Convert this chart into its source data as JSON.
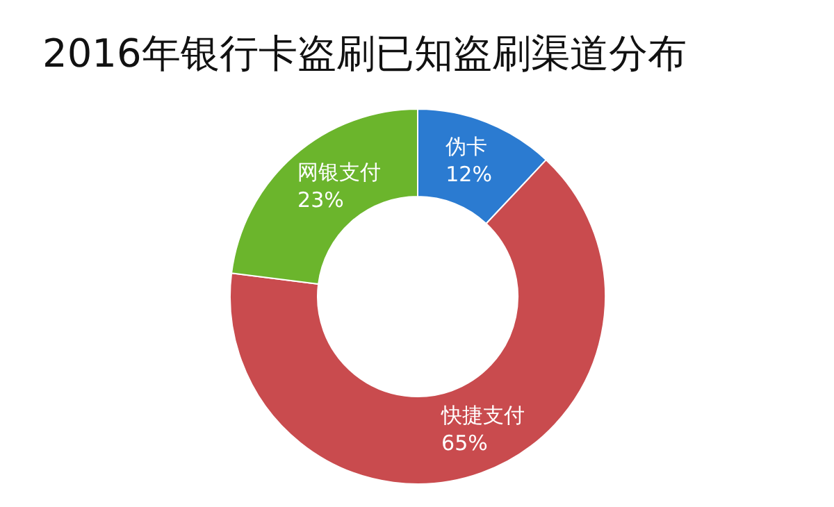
{
  "chart_data": {
    "type": "donut",
    "title": "2016年银行卡盗刷已知盗刷渠道分布",
    "categories": [
      "伪卡",
      "快捷支付",
      "网银支付"
    ],
    "values": [
      12,
      65,
      23
    ],
    "colors": [
      "#2b7bd1",
      "#c94b4e",
      "#6bb52c"
    ],
    "value_labels": [
      "12%",
      "65%",
      "23%"
    ],
    "legend": false
  }
}
